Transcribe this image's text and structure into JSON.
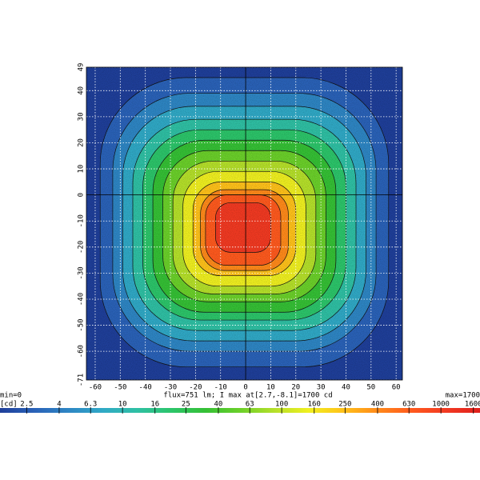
{
  "chart_data": {
    "type": "contour",
    "xlim": [
      -63.5,
      62.5
    ],
    "ylim": [
      -71,
      49
    ],
    "xticks": [
      -60,
      -50,
      -40,
      -30,
      -20,
      -10,
      0,
      10,
      20,
      30,
      40,
      50,
      60
    ],
    "yticks": [
      -71,
      -60,
      -50,
      -40,
      -30,
      -20,
      -10,
      0,
      10,
      20,
      30,
      40,
      49
    ],
    "grid": true,
    "background": "#1f3f9a",
    "contours": [
      {
        "level": 4,
        "color": "#2a62b8",
        "x": [
          -58,
          57
        ],
        "y": [
          -66,
          45
        ]
      },
      {
        "level": 6.3,
        "color": "#2e86c4",
        "x": [
          -53,
          52
        ],
        "y": [
          -60,
          39
        ]
      },
      {
        "level": 10,
        "color": "#30a9c6",
        "x": [
          -49,
          48
        ],
        "y": [
          -56,
          34
        ]
      },
      {
        "level": 16,
        "color": "#2fc0a4",
        "x": [
          -45,
          44
        ],
        "y": [
          -52,
          29
        ]
      },
      {
        "level": 25,
        "color": "#2cc56a",
        "x": [
          -41,
          40
        ],
        "y": [
          -48,
          25
        ]
      },
      {
        "level": 40,
        "color": "#35c035",
        "x": [
          -37,
          36
        ],
        "y": [
          -45,
          21
        ]
      },
      {
        "level": 63,
        "color": "#6bd02a",
        "x": [
          -33,
          32
        ],
        "y": [
          -41,
          17
        ]
      },
      {
        "level": 100,
        "color": "#b5e02a",
        "x": [
          -29,
          28
        ],
        "y": [
          -38,
          13
        ]
      },
      {
        "level": 160,
        "color": "#f0f020",
        "x": [
          -25,
          24
        ],
        "y": [
          -35,
          9
        ]
      },
      {
        "level": 250,
        "color": "#ffc21a",
        "x": [
          -21,
          20
        ],
        "y": [
          -31,
          5
        ]
      },
      {
        "level": 400,
        "color": "#ff8a1a",
        "x": [
          -18,
          17
        ],
        "y": [
          -29,
          2
        ]
      },
      {
        "level": 630,
        "color": "#ff5a1e",
        "x": [
          -16,
          14
        ],
        "y": [
          -27,
          0
        ]
      },
      {
        "level": 1000,
        "color": "#f23a22",
        "x": [
          -12,
          10
        ],
        "y": [
          -22,
          -3
        ]
      }
    ],
    "min_label": "min=0",
    "max_label": "max=1700",
    "summary": "flux=751 lm; I max at[2.7,-8.1]=1700 cd",
    "colorbar_unit": "[cd]",
    "colorbar_lim": [
      1.7,
      1760
    ],
    "colorbar_log": true,
    "colorbar_ticks": [
      2.5,
      4,
      6.3,
      10,
      16,
      25,
      40,
      63,
      100,
      160,
      250,
      400,
      630,
      1000,
      1600
    ],
    "colormap": [
      "#1f3f9a",
      "#2a62b8",
      "#2e86c4",
      "#30a9c6",
      "#2fc0a4",
      "#2cc56a",
      "#35c035",
      "#6bd02a",
      "#b5e02a",
      "#f0f020",
      "#ffc21a",
      "#ff8a1a",
      "#ff5a1e",
      "#f23a22",
      "#e0201c"
    ]
  }
}
